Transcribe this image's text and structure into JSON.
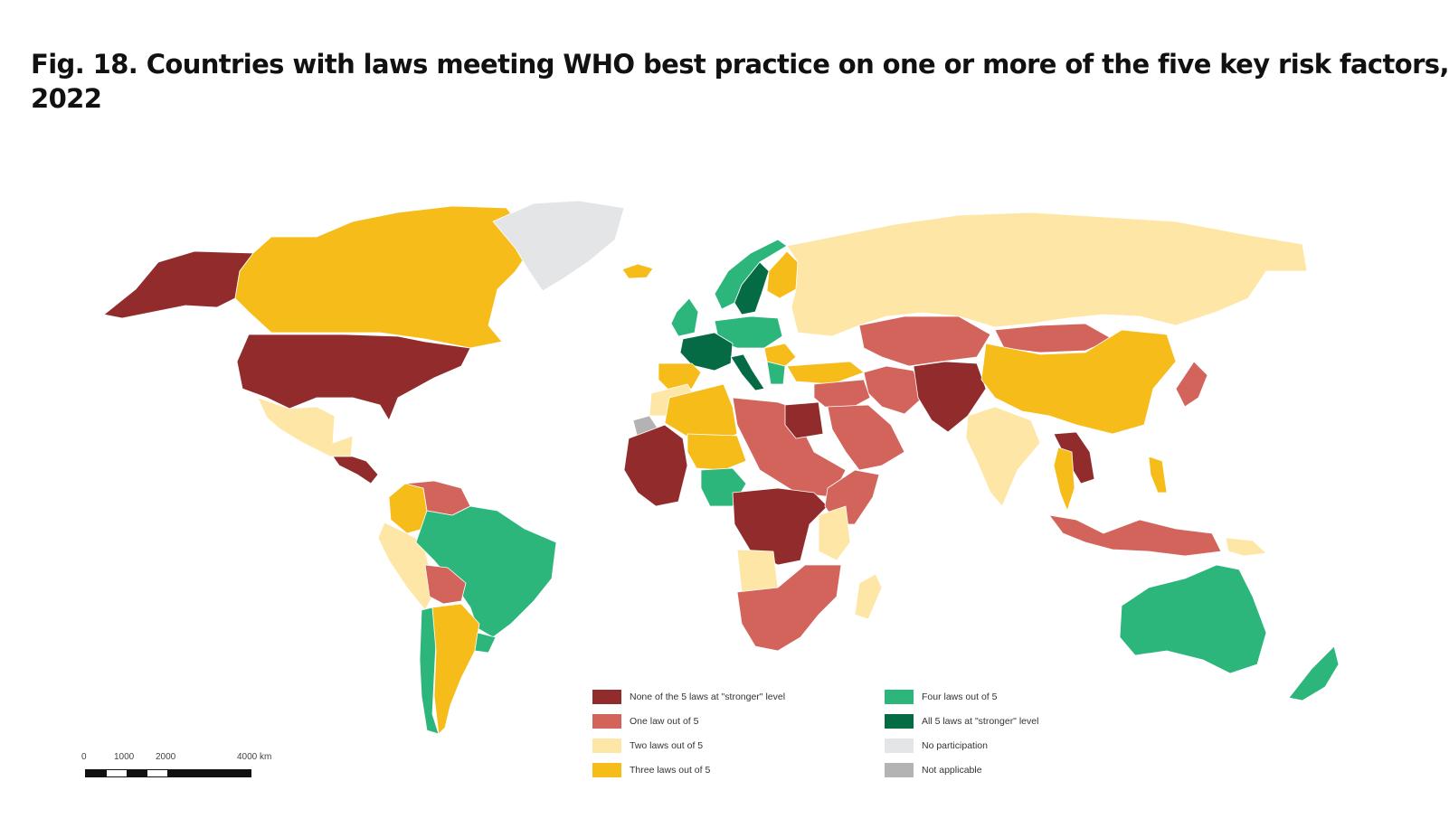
{
  "title_lines": [
    "Fig. 18. Countries with laws meeting WHO best practice on one or more of the five key risk factors,",
    "2022"
  ],
  "colors": {
    "none": "#922c2c",
    "one": "#d3645c",
    "two": "#fde6a6",
    "three": "#f6bc1a",
    "four": "#2db67c",
    "all": "#056b45",
    "no_participation": "#e4e5e7",
    "not_applicable": "#b3b3b3"
  },
  "legend": [
    {
      "label": "None of the 5 laws at \"stronger\" level",
      "color": "#922c2c"
    },
    {
      "label": "One law out of 5",
      "color": "#d3645c"
    },
    {
      "label": "Two laws out of 5",
      "color": "#fde6a6"
    },
    {
      "label": "Three laws out of 5",
      "color": "#f6bc1a"
    },
    {
      "label": "Four laws out of 5",
      "color": "#2db67c"
    },
    {
      "label": "All 5 laws at \"stronger\" level",
      "color": "#056b45"
    },
    {
      "label": "No participation",
      "color": "#e4e5e7"
    },
    {
      "label": "Not applicable",
      "color": "#b3b3b3"
    }
  ],
  "scale": {
    "ticks": [
      "0",
      "1000",
      "2000",
      "4000 km"
    ]
  },
  "regions": [
    {
      "name": "Alaska",
      "cat": "none"
    },
    {
      "name": "Canada",
      "cat": "three"
    },
    {
      "name": "Greenland",
      "cat": "no_participation"
    },
    {
      "name": "Iceland",
      "cat": "three"
    },
    {
      "name": "United States",
      "cat": "none"
    },
    {
      "name": "Mexico",
      "cat": "two"
    },
    {
      "name": "Central America",
      "cat": "none"
    },
    {
      "name": "Colombia",
      "cat": "three"
    },
    {
      "name": "Venezuela",
      "cat": "one"
    },
    {
      "name": "Peru",
      "cat": "two"
    },
    {
      "name": "Brazil",
      "cat": "four"
    },
    {
      "name": "Bolivia",
      "cat": "one"
    },
    {
      "name": "Chile",
      "cat": "four"
    },
    {
      "name": "Argentina",
      "cat": "three"
    },
    {
      "name": "Uruguay",
      "cat": "four"
    },
    {
      "name": "Norway",
      "cat": "four"
    },
    {
      "name": "Sweden",
      "cat": "all"
    },
    {
      "name": "Finland",
      "cat": "three"
    },
    {
      "name": "United Kingdom",
      "cat": "four"
    },
    {
      "name": "Central Europe",
      "cat": "four"
    },
    {
      "name": "France",
      "cat": "all"
    },
    {
      "name": "Iberia",
      "cat": "three"
    },
    {
      "name": "Italy",
      "cat": "all"
    },
    {
      "name": "Balkans",
      "cat": "three"
    },
    {
      "name": "Greece",
      "cat": "four"
    },
    {
      "name": "Turkey",
      "cat": "three"
    },
    {
      "name": "Russia",
      "cat": "two"
    },
    {
      "name": "Central Asia",
      "cat": "one"
    },
    {
      "name": "Afghanistan",
      "cat": "none"
    },
    {
      "name": "Iran",
      "cat": "one"
    },
    {
      "name": "Middle East",
      "cat": "one"
    },
    {
      "name": "Arabian Peninsula",
      "cat": "one"
    },
    {
      "name": "India",
      "cat": "two"
    },
    {
      "name": "China",
      "cat": "three"
    },
    {
      "name": "Mongolia",
      "cat": "one"
    },
    {
      "name": "Japan",
      "cat": "one"
    },
    {
      "name": "Indochina",
      "cat": "none"
    },
    {
      "name": "Thailand",
      "cat": "three"
    },
    {
      "name": "Philippines",
      "cat": "three"
    },
    {
      "name": "Indonesia",
      "cat": "one"
    },
    {
      "name": "Papua New Guinea",
      "cat": "two"
    },
    {
      "name": "Australia",
      "cat": "four"
    },
    {
      "name": "New Zealand",
      "cat": "four"
    },
    {
      "name": "Morocco",
      "cat": "two"
    },
    {
      "name": "Algeria",
      "cat": "three"
    },
    {
      "name": "Libya and Sudan",
      "cat": "one"
    },
    {
      "name": "Egypt",
      "cat": "none"
    },
    {
      "name": "West Africa",
      "cat": "none"
    },
    {
      "name": "Niger",
      "cat": "three"
    },
    {
      "name": "Nigeria",
      "cat": "four"
    },
    {
      "name": "Central Africa",
      "cat": "none"
    },
    {
      "name": "Horn of Africa",
      "cat": "one"
    },
    {
      "name": "Tanzania",
      "cat": "two"
    },
    {
      "name": "Angola",
      "cat": "two"
    },
    {
      "name": "Southern Africa",
      "cat": "one"
    },
    {
      "name": "Madagascar",
      "cat": "two"
    },
    {
      "name": "Western Sahara",
      "cat": "not_applicable"
    }
  ]
}
